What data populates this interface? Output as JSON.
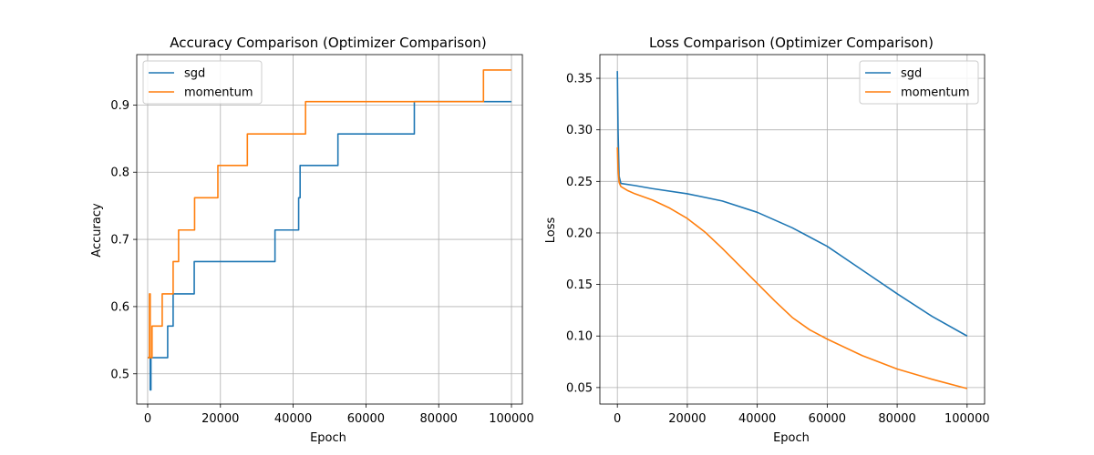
{
  "chart_data": [
    {
      "type": "line",
      "title": "Accuracy Comparison (Optimizer Comparison)",
      "xlabel": "Epoch",
      "ylabel": "Accuracy",
      "xlim": [
        -3000,
        103000
      ],
      "ylim": [
        0.455,
        0.975
      ],
      "xticks": [
        0,
        20000,
        40000,
        60000,
        80000,
        100000
      ],
      "yticks": [
        0.5,
        0.6,
        0.7,
        0.8,
        0.9
      ],
      "xtick_labels": [
        "0",
        "20000",
        "40000",
        "60000",
        "80000",
        "100000"
      ],
      "ytick_labels": [
        "0.5",
        "0.6",
        "0.7",
        "0.8",
        "0.9"
      ],
      "grid": true,
      "legend": "top-left",
      "series": [
        {
          "name": "sgd",
          "color": "#1f77b4",
          "step": true,
          "x": [
            0,
            700,
            900,
            5500,
            7000,
            12800,
            35000,
            41500,
            41900,
            52300,
            73300,
            100000
          ],
          "y": [
            0.524,
            0.476,
            0.524,
            0.571,
            0.619,
            0.667,
            0.714,
            0.762,
            0.81,
            0.857,
            0.905,
            0.905
          ]
        },
        {
          "name": "momentum",
          "color": "#ff7f0e",
          "step": true,
          "x": [
            0,
            500,
            700,
            1200,
            4000,
            7000,
            8500,
            12900,
            19300,
            27400,
            43400,
            92300,
            100000
          ],
          "y": [
            0.524,
            0.619,
            0.524,
            0.571,
            0.619,
            0.667,
            0.714,
            0.762,
            0.81,
            0.857,
            0.905,
            0.952,
            0.952
          ]
        }
      ]
    },
    {
      "type": "line",
      "title": "Loss Comparison (Optimizer Comparison)",
      "xlabel": "Epoch",
      "ylabel": "Loss",
      "xlim": [
        -5000,
        105000
      ],
      "ylim": [
        0.034,
        0.373
      ],
      "xticks": [
        0,
        20000,
        40000,
        60000,
        80000,
        100000
      ],
      "yticks": [
        0.05,
        0.1,
        0.15,
        0.2,
        0.25,
        0.3,
        0.35
      ],
      "xtick_labels": [
        "0",
        "20000",
        "40000",
        "60000",
        "80000",
        "100000"
      ],
      "ytick_labels": [
        "0.05",
        "0.10",
        "0.15",
        "0.20",
        "0.25",
        "0.30",
        "0.35"
      ],
      "grid": true,
      "legend": "top-right",
      "series": [
        {
          "name": "sgd",
          "color": "#1f77b4",
          "step": false,
          "x": [
            0,
            200,
            500,
            1000,
            5000,
            10000,
            20000,
            30000,
            40000,
            50000,
            60000,
            70000,
            80000,
            90000,
            100000
          ],
          "y": [
            0.357,
            0.3,
            0.255,
            0.248,
            0.246,
            0.243,
            0.238,
            0.231,
            0.22,
            0.205,
            0.187,
            0.164,
            0.141,
            0.119,
            0.1
          ]
        },
        {
          "name": "momentum",
          "color": "#ff7f0e",
          "step": false,
          "x": [
            0,
            200,
            500,
            1000,
            3000,
            5000,
            10000,
            15000,
            20000,
            25000,
            30000,
            35000,
            40000,
            45000,
            50000,
            55000,
            60000,
            70000,
            80000,
            90000,
            100000
          ],
          "y": [
            0.283,
            0.262,
            0.249,
            0.245,
            0.241,
            0.238,
            0.232,
            0.224,
            0.214,
            0.201,
            0.185,
            0.168,
            0.151,
            0.134,
            0.118,
            0.106,
            0.097,
            0.081,
            0.068,
            0.058,
            0.049
          ]
        }
      ]
    }
  ]
}
